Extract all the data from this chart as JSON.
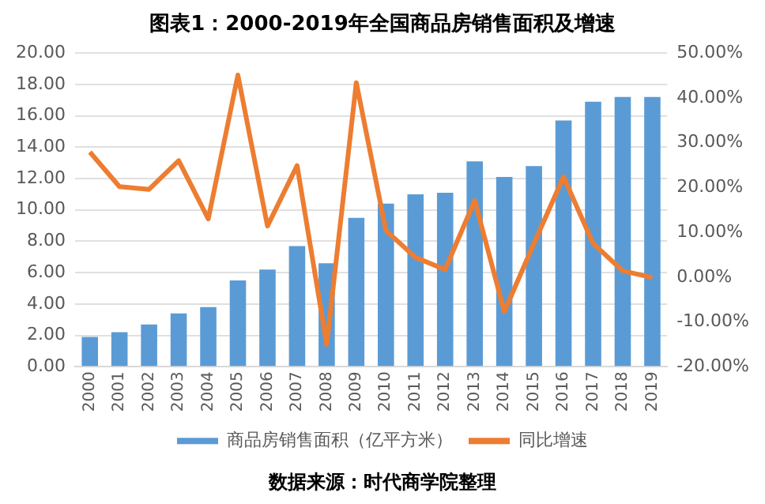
{
  "chart_data": {
    "type": "bar",
    "title": "图表1：2000-2019年全国商品房销售面积及增速",
    "categories": [
      "2000",
      "2001",
      "2002",
      "2003",
      "2004",
      "2005",
      "2006",
      "2007",
      "2008",
      "2009",
      "2010",
      "2011",
      "2012",
      "2013",
      "2014",
      "2015",
      "2016",
      "2017",
      "2018",
      "2019"
    ],
    "series": [
      {
        "name": "商品房销售面积（亿平方米）",
        "color": "#5b9bd5",
        "values": [
          1.9,
          2.2,
          2.7,
          3.4,
          3.8,
          5.5,
          6.2,
          7.7,
          6.6,
          9.5,
          10.4,
          11.0,
          11.1,
          13.1,
          12.1,
          12.8,
          15.7,
          16.9,
          17.2,
          17.2
        ]
      },
      {
        "name": "同比增速",
        "type": "line",
        "axis": "y2",
        "color": "#ed7d31",
        "values": [
          27.9,
          20.2,
          19.6,
          26.0,
          13.0,
          45.1,
          11.4,
          24.9,
          -15.0,
          43.4,
          10.4,
          4.4,
          1.7,
          17.1,
          -7.7,
          7.5,
          22.4,
          7.5,
          1.4,
          -0.1
        ]
      }
    ],
    "ylim": [
      0,
      20
    ],
    "yticks": [
      {
        "value": 0,
        "label": "0.00"
      },
      {
        "value": 2,
        "label": "2.00"
      },
      {
        "value": 4,
        "label": "4.00"
      },
      {
        "value": 6,
        "label": "6.00"
      },
      {
        "value": 8,
        "label": "8.00"
      },
      {
        "value": 10,
        "label": "10.00"
      },
      {
        "value": 12,
        "label": "12.00"
      },
      {
        "value": 14,
        "label": "14.00"
      },
      {
        "value": 16,
        "label": "16.00"
      },
      {
        "value": 18,
        "label": "18.00"
      },
      {
        "value": 20,
        "label": "20.00"
      }
    ],
    "y2lim": [
      -20,
      50
    ],
    "y2ticks": [
      {
        "value": -20,
        "label": "-20.00%"
      },
      {
        "value": -10,
        "label": "-10.00%"
      },
      {
        "value": 0,
        "label": "0.00%"
      },
      {
        "value": 10,
        "label": "10.00%"
      },
      {
        "value": 20,
        "label": "20.00%"
      },
      {
        "value": 30,
        "label": "30.00%"
      },
      {
        "value": 40,
        "label": "40.00%"
      },
      {
        "value": 50,
        "label": "50.00%"
      }
    ],
    "grid": "y",
    "legend": "bottom",
    "marker": "none",
    "line_style": "solid",
    "annotations": [
      "数据来源：时代商学院整理"
    ]
  }
}
